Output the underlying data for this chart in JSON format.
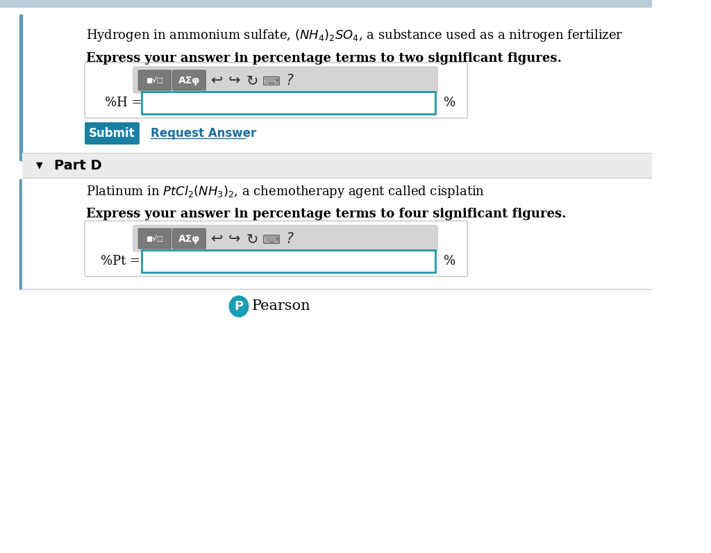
{
  "white": "#ffffff",
  "border_color": "#cccccc",
  "blue_border": "#2196a6",
  "teal_btn": "#1a7fa0",
  "link_blue": "#1a6fa0",
  "top_bar_color": "#b8cdd8",
  "left_bar_color": "#5b9ab5",
  "toolbar_bg": "#d4d4d4",
  "gray_btn": "#7a7a7a",
  "part_d_bg": "#ebebeb",
  "text_line1": "Hydrogen in ammonium sulfate, $(NH_4)_2SO_4$, a substance used as a nitrogen fertilizer",
  "bold1": "Express your answer in percentage terms to two significant figures.",
  "label1": "%H =",
  "part_d_label": "Part D",
  "text_line2": "Platinum in $PtCl_2(NH_3)_2$, a chemotherapy agent called cisplatin",
  "bold2": "Express your answer in percentage terms to four significant figures.",
  "label2": "%Pt =",
  "submit_text": "Submit",
  "request_text": "Request Answer",
  "pearson_text": "Pearson",
  "percent": "%"
}
